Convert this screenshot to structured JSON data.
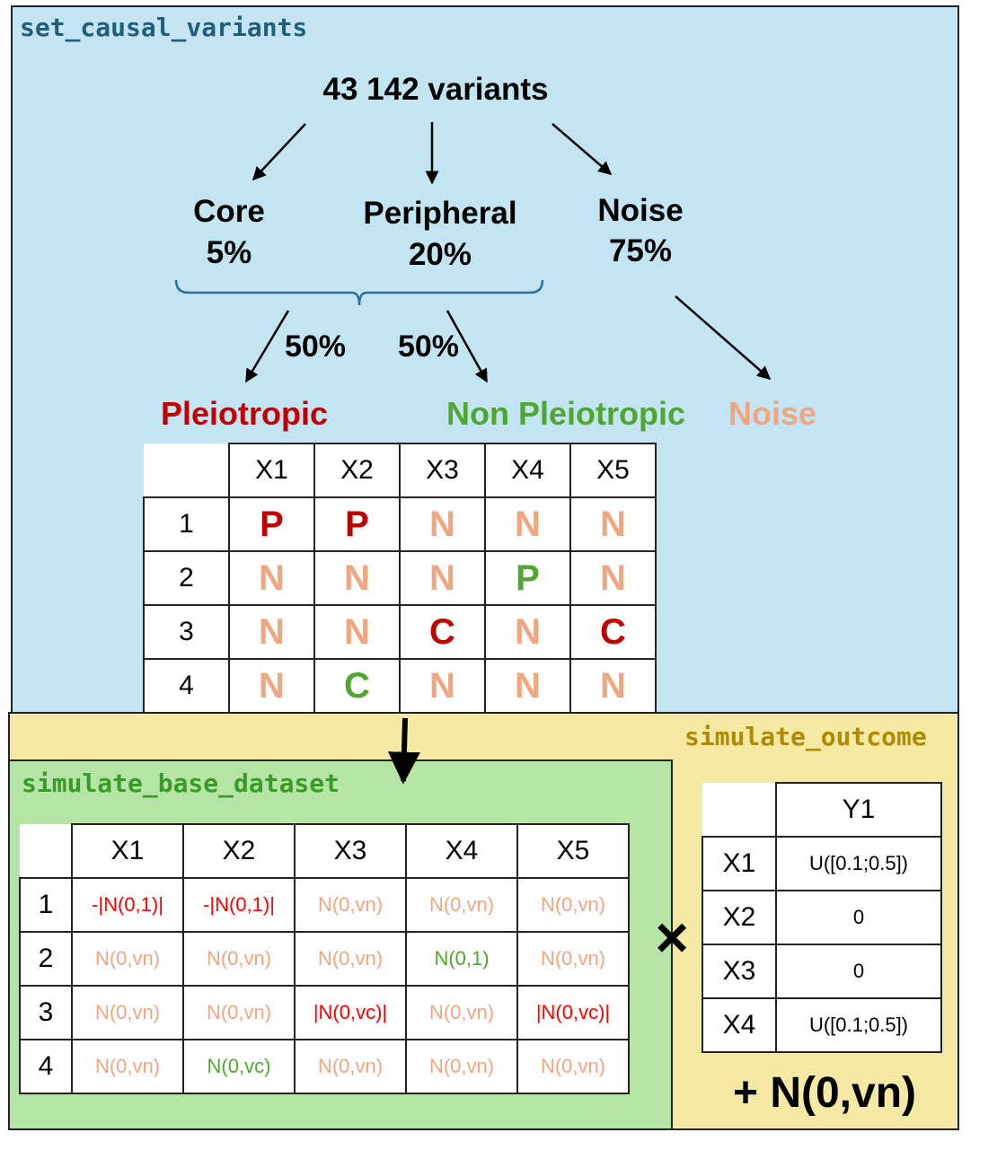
{
  "colors": {
    "pleiotropic": "#c00000",
    "non_pleiotropic": "#4ea72e",
    "noise": "#f0a67f",
    "bright_red": "#ff0000",
    "set_causal_title": "#1f5f7a",
    "base_title": "#3a9a2a",
    "outcome_title": "#b08a00"
  },
  "top": {
    "title": "set_causal_variants",
    "variants": "43 142 variants",
    "core": "Core",
    "core_pct": "5%",
    "peripheral": "Peripheral",
    "peripheral_pct": "20%",
    "noise": "Noise",
    "noise_pct": "75%",
    "left_split": "50%",
    "right_split": "50%",
    "label_pleiotropic": "Pleiotropic",
    "label_non_pleiotropic": "Non Pleiotropic",
    "label_noise": "Noise"
  },
  "letter_table": {
    "columns": [
      "X1",
      "X2",
      "X3",
      "X4",
      "X5"
    ],
    "rows": [
      {
        "label": "1",
        "cells": [
          {
            "t": "P",
            "c": "pleiotropic"
          },
          {
            "t": "P",
            "c": "pleiotropic"
          },
          {
            "t": "N",
            "c": "noise"
          },
          {
            "t": "N",
            "c": "noise"
          },
          {
            "t": "N",
            "c": "noise"
          }
        ]
      },
      {
        "label": "2",
        "cells": [
          {
            "t": "N",
            "c": "noise"
          },
          {
            "t": "N",
            "c": "noise"
          },
          {
            "t": "N",
            "c": "noise"
          },
          {
            "t": "P",
            "c": "non_pleiotropic"
          },
          {
            "t": "N",
            "c": "noise"
          }
        ]
      },
      {
        "label": "3",
        "cells": [
          {
            "t": "N",
            "c": "noise"
          },
          {
            "t": "N",
            "c": "noise"
          },
          {
            "t": "C",
            "c": "pleiotropic"
          },
          {
            "t": "N",
            "c": "noise"
          },
          {
            "t": "C",
            "c": "pleiotropic"
          }
        ]
      },
      {
        "label": "4",
        "cells": [
          {
            "t": "N",
            "c": "noise"
          },
          {
            "t": "C",
            "c": "non_pleiotropic"
          },
          {
            "t": "N",
            "c": "noise"
          },
          {
            "t": "N",
            "c": "noise"
          },
          {
            "t": "N",
            "c": "noise"
          }
        ]
      }
    ]
  },
  "base": {
    "title": "simulate_base_dataset",
    "columns": [
      "X1",
      "X2",
      "X3",
      "X4",
      "X5"
    ],
    "rows": [
      {
        "label": "1",
        "cells": [
          {
            "t": "-|N(0,1)|",
            "c": "bright_red"
          },
          {
            "t": "-|N(0,1)|",
            "c": "bright_red"
          },
          {
            "t": "N(0,vn)",
            "c": "noise"
          },
          {
            "t": "N(0,vn)",
            "c": "noise"
          },
          {
            "t": "N(0,vn)",
            "c": "noise"
          }
        ]
      },
      {
        "label": "2",
        "cells": [
          {
            "t": "N(0,vn)",
            "c": "noise"
          },
          {
            "t": "N(0,vn)",
            "c": "noise"
          },
          {
            "t": "N(0,vn)",
            "c": "noise"
          },
          {
            "t": "N(0,1)",
            "c": "non_pleiotropic"
          },
          {
            "t": "N(0,vn)",
            "c": "noise"
          }
        ]
      },
      {
        "label": "3",
        "cells": [
          {
            "t": "N(0,vn)",
            "c": "noise"
          },
          {
            "t": "N(0,vn)",
            "c": "noise"
          },
          {
            "t": "|N(0,vc)|",
            "c": "bright_red"
          },
          {
            "t": "N(0,vn)",
            "c": "noise"
          },
          {
            "t": "|N(0,vc)|",
            "c": "bright_red"
          }
        ]
      },
      {
        "label": "4",
        "cells": [
          {
            "t": "N(0,vn)",
            "c": "noise"
          },
          {
            "t": "N(0,vc)",
            "c": "non_pleiotropic"
          },
          {
            "t": "N(0,vn)",
            "c": "noise"
          },
          {
            "t": "N(0,vn)",
            "c": "noise"
          },
          {
            "t": "N(0,vn)",
            "c": "noise"
          }
        ]
      }
    ]
  },
  "outcome": {
    "title": "simulate_outcome",
    "multiply": "×",
    "column": "Y1",
    "rows": [
      {
        "label": "X1",
        "value": "U([0.1;0.5])"
      },
      {
        "label": "X2",
        "value": "0"
      },
      {
        "label": "X3",
        "value": "0"
      },
      {
        "label": "X4",
        "value": "U([0.1;0.5])"
      }
    ],
    "plus_noise": "+ N(0,vn)"
  }
}
